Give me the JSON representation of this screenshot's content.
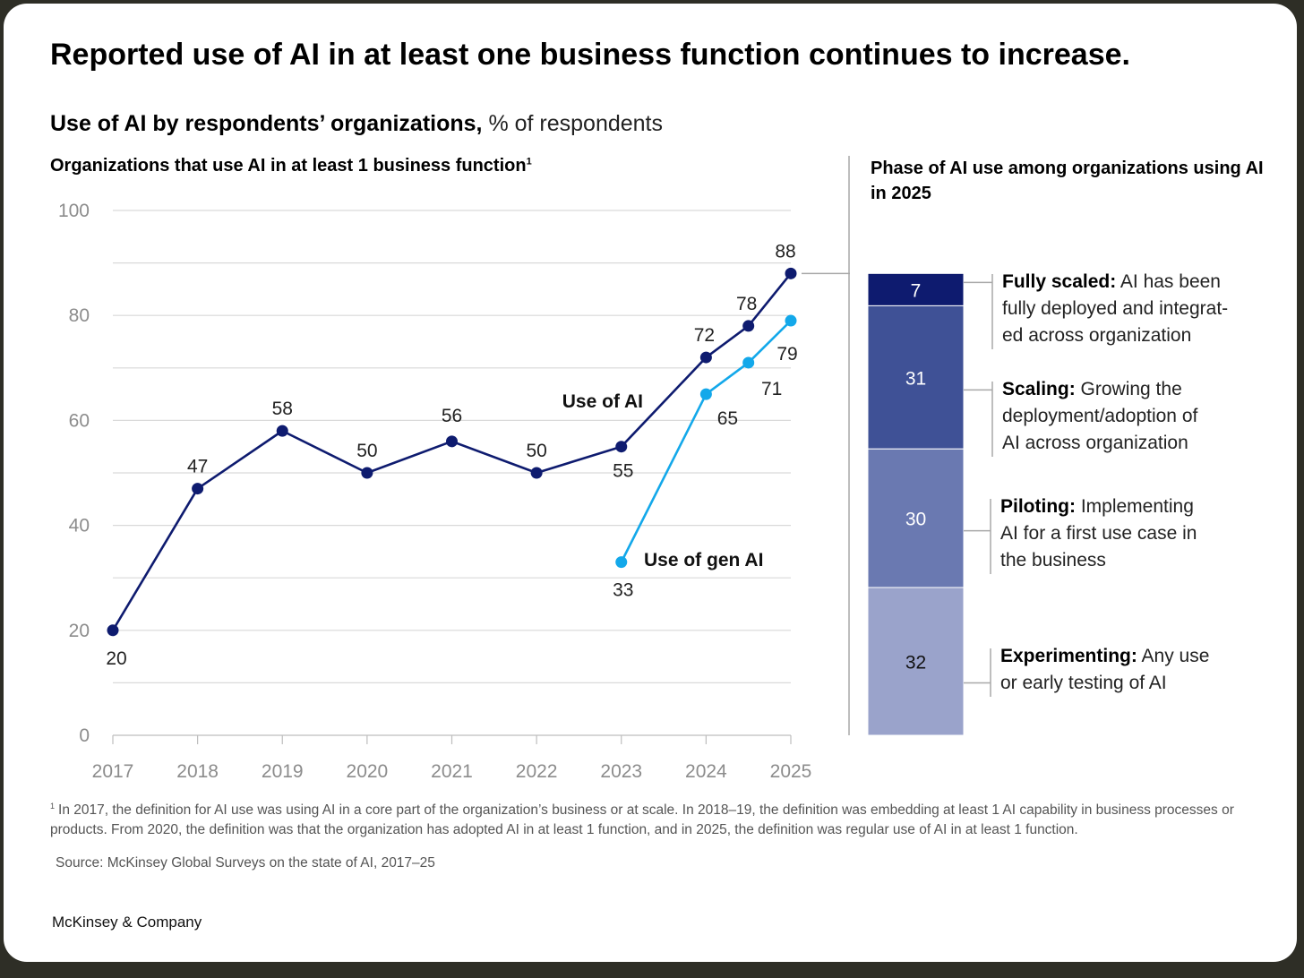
{
  "title": "Reported use of AI in at least one business function continues to increase.",
  "subtitle": {
    "main": "Use of AI by respondents’ organizations,",
    "unit": "% of respondents"
  },
  "footnote": {
    "marker": "1",
    "text": "In 2017, the definition for AI use was using AI in a core part of the organization’s business or at scale. In 2018–19, the definition was embedding at least 1 AI capability in business processes or products. From 2020, the definition was that the organization has adopted AI in at least 1 function, and in 2025, the definition was regular use of AI in at least 1 function."
  },
  "source": "Source: McKinsey Global Surveys on the state of AI, 2017–25",
  "brand": "McKinsey & Company",
  "colors": {
    "use_of_ai": "#0e1b6f",
    "use_of_gen_ai": "#13a8ea",
    "grid": "#d9d9d9",
    "axis_text": "#8c8c8c"
  },
  "chart_data": [
    {
      "type": "line",
      "title": "Organizations that use AI in at least 1 business function",
      "title_marker": "1",
      "x": [
        "2017",
        "2018",
        "2019",
        "2020",
        "2021",
        "2022",
        "2023",
        "2024",
        "2025"
      ],
      "ylim": [
        0,
        100
      ],
      "yticks": [
        0,
        20,
        40,
        60,
        80,
        100
      ],
      "grid": true,
      "series": [
        {
          "name": "Use of AI",
          "points": [
            {
              "x": 2017,
              "y": 20
            },
            {
              "x": 2018,
              "y": 47
            },
            {
              "x": 2019,
              "y": 58
            },
            {
              "x": 2020,
              "y": 50
            },
            {
              "x": 2021,
              "y": 56
            },
            {
              "x": 2022,
              "y": 50
            },
            {
              "x": 2023,
              "y": 55
            },
            {
              "x": 2024,
              "y": 72
            },
            {
              "x": 2024.5,
              "y": 78
            },
            {
              "x": 2025,
              "y": 88
            }
          ]
        },
        {
          "name": "Use of gen AI",
          "points": [
            {
              "x": 2023,
              "y": 33
            },
            {
              "x": 2024,
              "y": 65
            },
            {
              "x": 2024.5,
              "y": 71
            },
            {
              "x": 2025,
              "y": 79
            }
          ]
        }
      ]
    },
    {
      "type": "bar",
      "stacked": true,
      "title": "Phase of AI use among organizations using AI in 2025",
      "segments": [
        {
          "value": 7,
          "color": "#0e1b6f",
          "name": "Fully scaled:",
          "description": "AI has been fully deployed and integrat-ed across organization",
          "lines": [
            "AI has been",
            "fully deployed and integrat-",
            "ed across organization"
          ]
        },
        {
          "value": 31,
          "color": "#3f5196",
          "name": "Scaling:",
          "description": "Growing the deployment/adoption of AI across organization",
          "lines": [
            "Growing the",
            "deployment/adoption of",
            "AI across organization"
          ]
        },
        {
          "value": 30,
          "color": "#6a79b1",
          "name": "Piloting:",
          "description": "Implementing AI for a first use case in the business",
          "lines": [
            "Implementing",
            "AI for a first use case in",
            "the business"
          ]
        },
        {
          "value": 32,
          "color": "#9aa3cb",
          "name": "Experimenting:",
          "description": "Any use or early testing of AI",
          "lines": [
            "Any use",
            "or early testing of AI"
          ]
        }
      ]
    }
  ]
}
